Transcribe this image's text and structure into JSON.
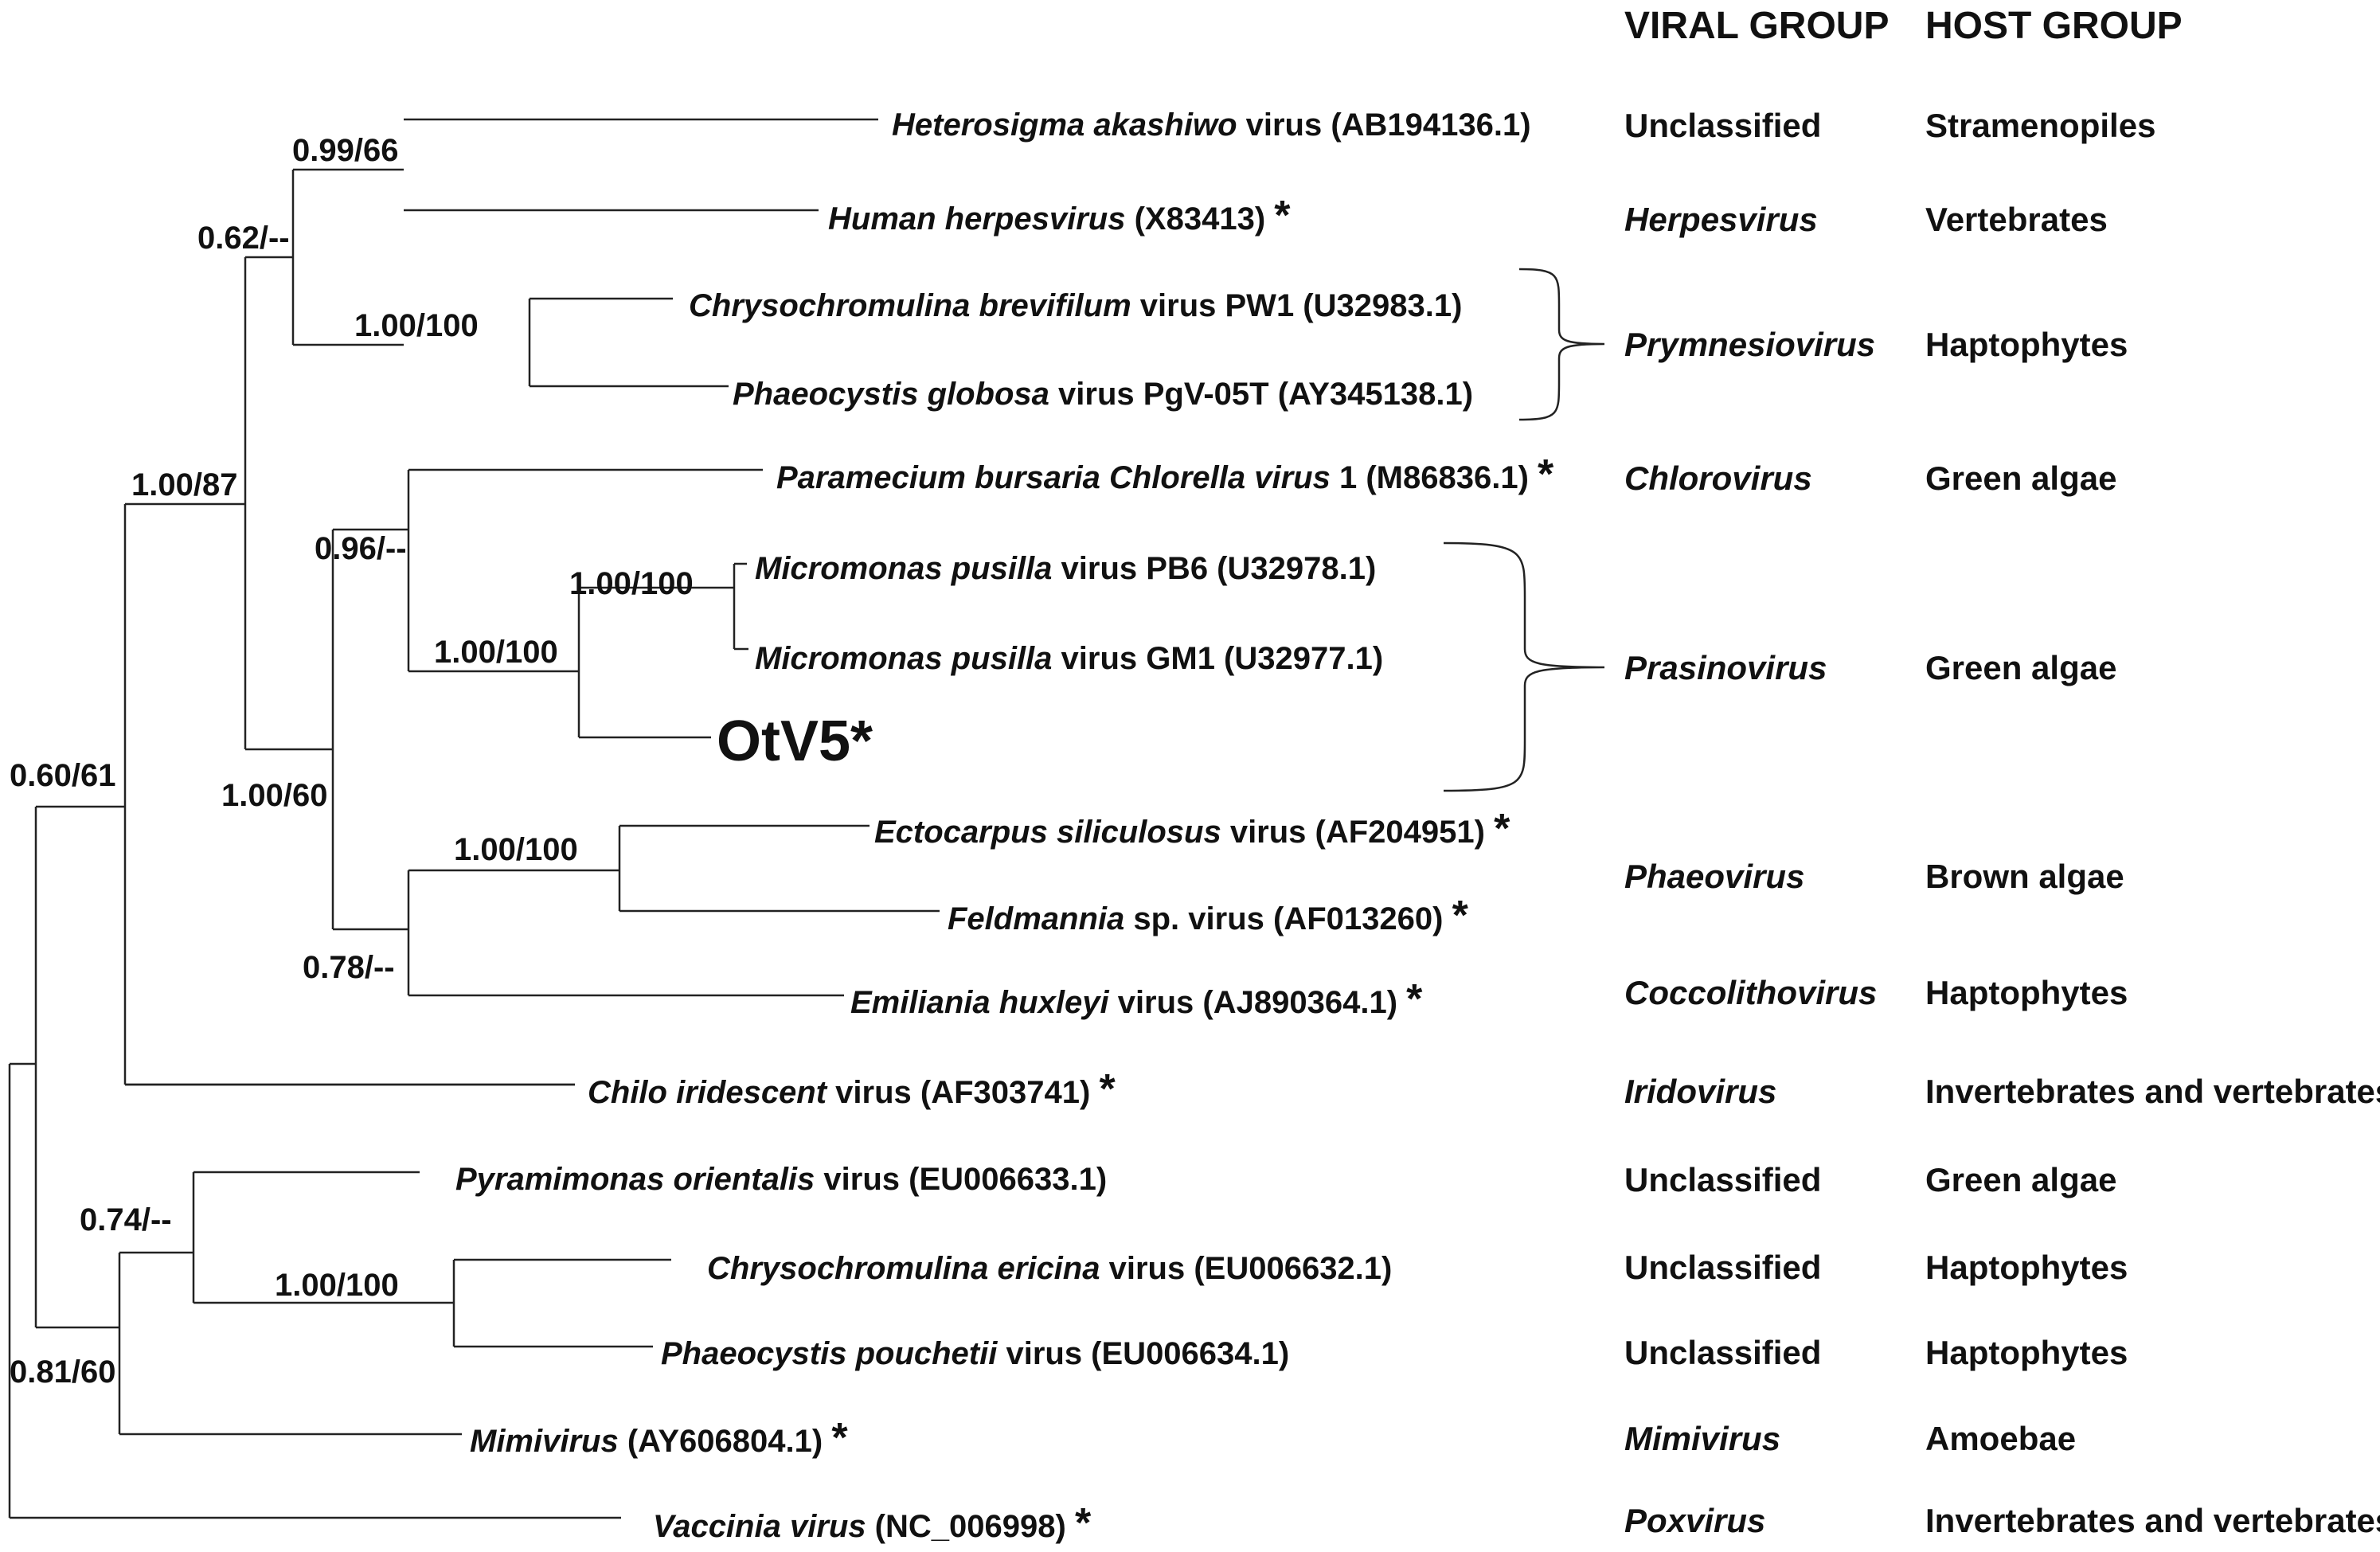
{
  "headers": {
    "viral_group": "VIRAL GROUP",
    "host_group": "HOST GROUP"
  },
  "taxa": [
    {
      "id": "heterosigma",
      "parts": [
        {
          "t": "Heterosigma akashiwo",
          "i": true
        },
        {
          "t": " virus (AB194136.1)",
          "i": false
        }
      ]
    },
    {
      "id": "human-herpes",
      "parts": [
        {
          "t": "Human herpesvirus",
          "i": true
        },
        {
          "t": " (X83413) ",
          "i": false
        },
        {
          "t": "*",
          "i": false,
          "big": true
        }
      ]
    },
    {
      "id": "chryso-brevifilum",
      "parts": [
        {
          "t": "Chrysochromulina brevifilum",
          "i": true
        },
        {
          "t": " virus PW1 (U32983.1)",
          "i": false
        }
      ]
    },
    {
      "id": "phaeocystis-globosa",
      "parts": [
        {
          "t": "Phaeocystis globosa",
          "i": true
        },
        {
          "t": " virus PgV-05T (AY345138.1)",
          "i": false
        }
      ]
    },
    {
      "id": "pbcv",
      "parts": [
        {
          "t": "Paramecium bursaria Chlorella virus",
          "i": true
        },
        {
          "t": " 1 (M86836.1) ",
          "i": false
        },
        {
          "t": "*",
          "i": false,
          "big": true
        }
      ]
    },
    {
      "id": "micromonas-pb6",
      "parts": [
        {
          "t": "Micromonas pusilla",
          "i": true
        },
        {
          "t": " virus PB6 (U32978.1)",
          "i": false
        }
      ]
    },
    {
      "id": "micromonas-gm1",
      "parts": [
        {
          "t": "Micromonas pusilla",
          "i": true
        },
        {
          "t": " virus GM1 (U32977.1)",
          "i": false
        }
      ]
    },
    {
      "id": "otv5",
      "parts": [
        {
          "t": "OtV5*",
          "i": false
        }
      ]
    },
    {
      "id": "ectocarpus",
      "parts": [
        {
          "t": "Ectocarpus siliculosus",
          "i": true
        },
        {
          "t": " virus (AF204951) ",
          "i": false
        },
        {
          "t": "*",
          "i": false,
          "big": true
        }
      ]
    },
    {
      "id": "feldmannia",
      "parts": [
        {
          "t": "Feldmannia",
          "i": true
        },
        {
          "t": " sp. virus (AF013260) ",
          "i": false
        },
        {
          "t": "*",
          "i": false,
          "big": true
        }
      ]
    },
    {
      "id": "emiliania",
      "parts": [
        {
          "t": "Emiliania huxleyi",
          "i": true
        },
        {
          "t": " virus (AJ890364.1) ",
          "i": false
        },
        {
          "t": "*",
          "i": false,
          "big": true
        }
      ]
    },
    {
      "id": "chilo",
      "parts": [
        {
          "t": "Chilo iridescent",
          "i": true
        },
        {
          "t": " virus (AF303741) ",
          "i": false
        },
        {
          "t": "*",
          "i": false,
          "big": true
        }
      ]
    },
    {
      "id": "pyramimonas",
      "parts": [
        {
          "t": "Pyramimonas orientalis",
          "i": true
        },
        {
          "t": " virus (EU006633.1)",
          "i": false
        }
      ]
    },
    {
      "id": "chryso-ericina",
      "parts": [
        {
          "t": "Chrysochromulina ericina",
          "i": true
        },
        {
          "t": " virus (EU006632.1)",
          "i": false
        }
      ]
    },
    {
      "id": "phaeocystis-pouchetii",
      "parts": [
        {
          "t": "Phaeocystis pouchetii",
          "i": true
        },
        {
          "t": " virus (EU006634.1)",
          "i": false
        }
      ]
    },
    {
      "id": "mimivirus",
      "parts": [
        {
          "t": "Mimivirus",
          "i": true
        },
        {
          "t": " (AY606804.1) ",
          "i": false
        },
        {
          "t": "*",
          "i": false,
          "big": true
        }
      ]
    },
    {
      "id": "vaccinia",
      "parts": [
        {
          "t": "Vaccinia virus",
          "i": true
        },
        {
          "t": " (NC_006998) ",
          "i": false
        },
        {
          "t": "*",
          "i": false,
          "big": true
        }
      ]
    }
  ],
  "support_values": [
    {
      "id": "n1",
      "label": "0.99/66"
    },
    {
      "id": "n2",
      "label": "0.62/--"
    },
    {
      "id": "n3",
      "label": "1.00/100"
    },
    {
      "id": "n4",
      "label": "1.00/87"
    },
    {
      "id": "n5",
      "label": "0.96/--"
    },
    {
      "id": "n6",
      "label": "1.00/100"
    },
    {
      "id": "n7",
      "label": "1.00/100"
    },
    {
      "id": "n8",
      "label": "1.00/60"
    },
    {
      "id": "n9",
      "label": "1.00/100"
    },
    {
      "id": "n10",
      "label": "0.78/--"
    },
    {
      "id": "n11",
      "label": "0.60/61"
    },
    {
      "id": "n12",
      "label": "0.74/--"
    },
    {
      "id": "n13",
      "label": "1.00/100"
    },
    {
      "id": "n14",
      "label": "0.81/60"
    }
  ],
  "groups": [
    {
      "id": "g1",
      "viral": "Unclassified",
      "viral_italic": false,
      "host": "Stramenopiles"
    },
    {
      "id": "g2",
      "viral": "Herpesvirus",
      "viral_italic": true,
      "host": "Vertebrates"
    },
    {
      "id": "g3",
      "viral": "Prymnesiovirus",
      "viral_italic": true,
      "host": "Haptophytes"
    },
    {
      "id": "g4",
      "viral": "Chlorovirus",
      "viral_italic": true,
      "host": "Green algae"
    },
    {
      "id": "g5",
      "viral": "Prasinovirus",
      "viral_italic": true,
      "host": "Green algae"
    },
    {
      "id": "g6",
      "viral": "Phaeovirus",
      "viral_italic": true,
      "host": "Brown algae"
    },
    {
      "id": "g7",
      "viral": "Coccolithovirus",
      "viral_italic": true,
      "host": "Haptophytes"
    },
    {
      "id": "g8",
      "viral": "Iridovirus",
      "viral_italic": true,
      "host": "Invertebrates and vertebrates"
    },
    {
      "id": "g9",
      "viral": "Unclassified",
      "viral_italic": false,
      "host": "Green algae"
    },
    {
      "id": "g10",
      "viral": "Unclassified",
      "viral_italic": false,
      "host": "Haptophytes"
    },
    {
      "id": "g11",
      "viral": "Unclassified",
      "viral_italic": false,
      "host": "Haptophytes"
    },
    {
      "id": "g12",
      "viral": "Mimivirus",
      "viral_italic": true,
      "host": "Amoebae"
    },
    {
      "id": "g13",
      "viral": "Poxvirus",
      "viral_italic": true,
      "host": "Invertebrates and vertebrates"
    }
  ]
}
